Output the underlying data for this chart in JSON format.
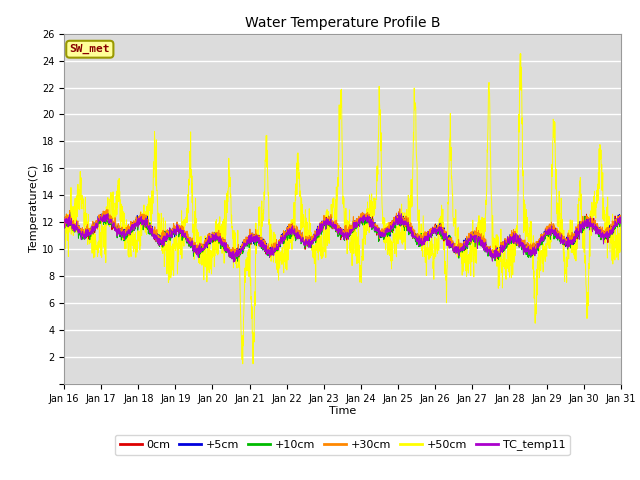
{
  "title": "Water Temperature Profile B",
  "xlabel": "Time",
  "ylabel": "Temperature(C)",
  "annotation": "SW_met",
  "ylim": [
    0,
    26
  ],
  "yticks": [
    0,
    2,
    4,
    6,
    8,
    10,
    12,
    14,
    16,
    18,
    20,
    22,
    24,
    26
  ],
  "xtick_labels": [
    "Jan 16",
    "Jan 17",
    "Jan 18",
    "Jan 19",
    "Jan 20",
    "Jan 21",
    "Jan 22",
    "Jan 23",
    "Jan 24",
    "Jan 25",
    "Jan 26",
    "Jan 27",
    "Jan 28",
    "Jan 29",
    "Jan 30",
    "Jan 31"
  ],
  "series_colors": {
    "0cm": "#dd0000",
    "+5cm": "#0000dd",
    "+10cm": "#00bb00",
    "+30cm": "#ff8800",
    "+50cm": "#ffff00",
    "TC_temp11": "#aa00cc"
  },
  "plot_bg": "#dcdcdc",
  "fig_bg": "#ffffff",
  "grid_color": "#ffffff",
  "annot_bg": "#ffff99",
  "annot_edge": "#999900",
  "annot_text_color": "#880000",
  "title_fontsize": 10,
  "axis_label_fontsize": 8,
  "tick_fontsize": 7,
  "legend_fontsize": 8
}
